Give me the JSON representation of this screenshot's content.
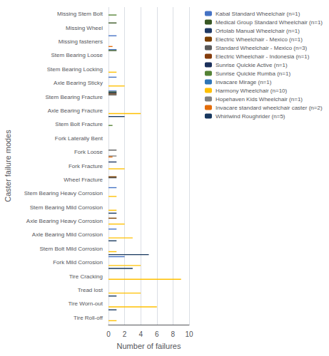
{
  "chart_data": {
    "type": "bar",
    "orientation": "horizontal",
    "xlabel": "Number of failures",
    "ylabel": "Caster failure modes",
    "categories": [
      "Missing Stem Bolt",
      "Missing Wheel",
      "Missing fasteners",
      "Stem Bearing Loose",
      "Stem Bearing Locking",
      "Axle Bearing Sticky",
      "Stem Bearing Fracture",
      "Axle Bearing Fracture",
      "Stem Bolt Fracture",
      "Fork Laterally Bent",
      "Fork Loose",
      "Fork Fracture",
      "Wheel Fracture",
      "Stem Bearing Heavy Corrosion",
      "Stem Bearing Mild Corrosion",
      "Axle Bearing Heavy Corrosion",
      "Axle Bearing Mild Corrosion",
      "Stem Bolt Mild Corrosion",
      "Fork Mild Corrosion",
      "Tire Cracking",
      "Tread lost",
      "Tire Worn-out",
      "Tire Roll-off"
    ],
    "series": [
      {
        "name": "Kabal Standard Wheelchair (n=1)",
        "color": "#4472C4",
        "values": [
          null,
          null,
          1,
          1,
          null,
          1,
          1,
          null,
          null,
          null,
          null,
          null,
          null,
          1,
          null,
          null,
          1,
          null,
          2,
          null,
          null,
          null,
          null
        ]
      },
      {
        "name": "Medical Group Standard Wheelchair (n=1)",
        "color": "#375623",
        "values": [
          null,
          1,
          null,
          1,
          null,
          null,
          1,
          null,
          null,
          null,
          null,
          null,
          null,
          null,
          null,
          null,
          null,
          null,
          null,
          null,
          null,
          null,
          null
        ]
      },
      {
        "name": "Ortolab Manual Wheelchair (n=1)",
        "color": "#1F3864",
        "values": [
          null,
          null,
          null,
          null,
          null,
          null,
          1,
          null,
          null,
          null,
          null,
          1,
          null,
          null,
          null,
          null,
          null,
          null,
          null,
          null,
          null,
          null,
          null
        ]
      },
      {
        "name": "Electric Wheelchair - Mexico (n=1)",
        "color": "#7B3F00",
        "values": [
          null,
          null,
          null,
          null,
          null,
          null,
          1,
          null,
          null,
          null,
          null,
          null,
          1,
          null,
          null,
          1,
          null,
          null,
          null,
          null,
          null,
          null,
          null
        ]
      },
      {
        "name": "Standard Wheelchair - Mexico (n=3)",
        "color": "#595959",
        "values": [
          null,
          null,
          null,
          null,
          null,
          null,
          1,
          null,
          null,
          null,
          1,
          null,
          1,
          null,
          null,
          null,
          null,
          null,
          null,
          null,
          null,
          null,
          null
        ]
      },
      {
        "name": "Electric Wheelchair - Indonesia (n=1)",
        "color": "#843C0C",
        "values": [
          null,
          null,
          null,
          null,
          null,
          null,
          null,
          null,
          null,
          null,
          null,
          null,
          null,
          null,
          null,
          null,
          null,
          null,
          null,
          null,
          null,
          null,
          null
        ]
      },
      {
        "name": "Sunrise Quickie Active (n=1)",
        "color": "#1A2F5A",
        "values": [
          null,
          null,
          null,
          null,
          null,
          null,
          null,
          null,
          null,
          null,
          null,
          null,
          null,
          null,
          null,
          null,
          null,
          null,
          null,
          null,
          null,
          null,
          null
        ]
      },
      {
        "name": "Sunrise Quickie Rumba (n=1)",
        "color": "#548235",
        "values": [
          1,
          null,
          null,
          null,
          null,
          null,
          null,
          null,
          0.5,
          null,
          null,
          null,
          null,
          null,
          null,
          null,
          null,
          null,
          null,
          null,
          null,
          null,
          null
        ]
      },
      {
        "name": "Invacare Mirage (n=1)",
        "color": "#2E75B6",
        "values": [
          null,
          null,
          null,
          null,
          null,
          null,
          null,
          null,
          null,
          null,
          null,
          null,
          null,
          null,
          null,
          null,
          null,
          null,
          null,
          null,
          null,
          null,
          null
        ]
      },
      {
        "name": "Harmony Wheelchair (n=10)",
        "color": "#FFC000",
        "values": [
          null,
          null,
          null,
          null,
          1,
          2,
          null,
          4,
          null,
          null,
          null,
          2,
          null,
          1,
          1,
          2,
          3,
          1,
          4,
          9,
          4,
          6,
          1
        ]
      },
      {
        "name": "Hopehaven Kids Wheelchair (n=1)",
        "color": "#808080",
        "values": [
          null,
          null,
          null,
          null,
          null,
          null,
          null,
          null,
          null,
          null,
          1,
          null,
          null,
          null,
          null,
          null,
          null,
          null,
          null,
          null,
          null,
          null,
          null
        ]
      },
      {
        "name": "Invacare standard wheelchair caster (n=2)",
        "color": "#E36C09",
        "values": [
          null,
          null,
          0.5,
          null,
          null,
          null,
          null,
          null,
          null,
          null,
          0.5,
          null,
          null,
          null,
          null,
          null,
          null,
          null,
          null,
          null,
          null,
          null,
          null
        ]
      },
      {
        "name": "Whirlwind Roughrider (n=5)",
        "color": "#17375E",
        "values": [
          null,
          null,
          null,
          null,
          null,
          null,
          null,
          2,
          null,
          null,
          null,
          null,
          null,
          null,
          1,
          null,
          1,
          5,
          3,
          null,
          1,
          1,
          null
        ]
      }
    ],
    "xlim": [
      0,
      10
    ],
    "xticks": [
      0,
      2,
      4,
      6,
      8,
      10
    ],
    "grid": true,
    "legend": "right"
  }
}
